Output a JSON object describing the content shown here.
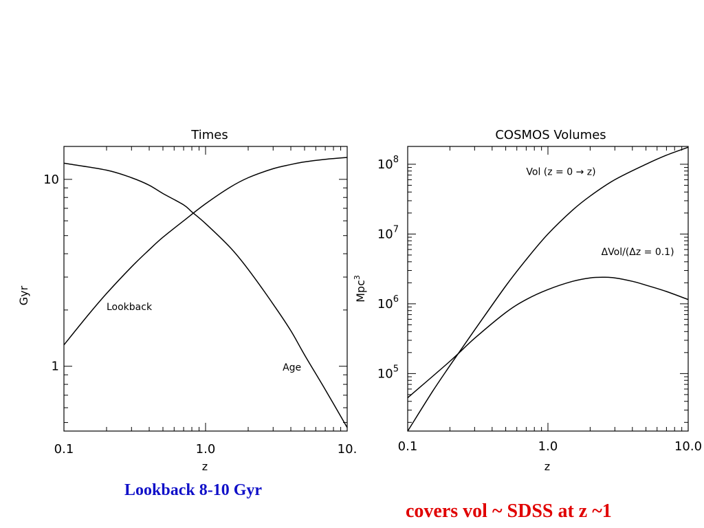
{
  "chart_data": [
    {
      "type": "line",
      "title": "Times",
      "xlabel": "z",
      "ylabel": "Gyr",
      "xscale": "log",
      "yscale": "log",
      "xlim": [
        0.1,
        10
      ],
      "ylim": [
        0.45,
        15
      ],
      "xticks": [
        0.1,
        1,
        10
      ],
      "xtick_labels": [
        "0.1",
        "1.0",
        "10."
      ],
      "yticks": [
        1,
        10
      ],
      "ytick_labels": [
        "1",
        "10"
      ],
      "grid": false,
      "series": [
        {
          "name": "Lookback",
          "x": [
            0.1,
            0.15,
            0.2,
            0.3,
            0.4,
            0.5,
            0.7,
            1.0,
            1.5,
            2.0,
            3.0,
            4.0,
            5.0,
            7.0,
            10.0
          ],
          "values": [
            1.3,
            1.9,
            2.45,
            3.4,
            4.2,
            4.9,
            6.0,
            7.4,
            9.1,
            10.2,
            11.4,
            12.0,
            12.4,
            12.8,
            13.1
          ]
        },
        {
          "name": "Age",
          "x": [
            0.1,
            0.2,
            0.3,
            0.4,
            0.5,
            0.7,
            0.8,
            1.0,
            1.5,
            2.0,
            3.0,
            4.0,
            5.0,
            7.0,
            10.0
          ],
          "values": [
            12.2,
            11.2,
            10.2,
            9.3,
            8.4,
            7.3,
            6.7,
            5.8,
            4.3,
            3.3,
            2.15,
            1.55,
            1.15,
            0.75,
            0.47
          ]
        }
      ],
      "annotations": [
        {
          "text": "Lookback",
          "x": 0.2,
          "y": 2.0
        },
        {
          "text": "Age",
          "x": 3.5,
          "y": 0.95
        }
      ]
    },
    {
      "type": "line",
      "title": "COSMOS Volumes",
      "xlabel": "z",
      "ylabel": "Mpc",
      "ylabel_superscript": "3",
      "xscale": "log",
      "yscale": "log",
      "xlim": [
        0.1,
        10
      ],
      "ylim": [
        15000,
        180000000
      ],
      "xticks": [
        0.1,
        1,
        10
      ],
      "xtick_labels": [
        "0.1",
        "1.0",
        "10.0"
      ],
      "yticks": [
        100000,
        1000000,
        10000000,
        100000000
      ],
      "ytick_labels": [
        {
          "base": "10",
          "exp": "5"
        },
        {
          "base": "10",
          "exp": "6"
        },
        {
          "base": "10",
          "exp": "7"
        },
        {
          "base": "10",
          "exp": "8"
        }
      ],
      "grid": false,
      "series": [
        {
          "name": "Vol (z = 0 → z)",
          "x": [
            0.1,
            0.15,
            0.2,
            0.3,
            0.5,
            0.7,
            1.0,
            1.5,
            2.0,
            3.0,
            5.0,
            7.0,
            10.0
          ],
          "values": [
            15000,
            55000,
            130000,
            420000,
            1800000,
            4300000,
            10000000,
            22000000,
            35000000,
            60000000,
            100000000,
            135000000,
            175000000
          ]
        },
        {
          "name": "ΔVol/(Δz = 0.1)",
          "x": [
            0.1,
            0.2,
            0.3,
            0.5,
            0.7,
            1.0,
            1.5,
            2.0,
            2.5,
            3.0,
            4.0,
            5.0,
            7.0,
            10.0
          ],
          "values": [
            45000,
            150000,
            320000,
            750000,
            1150000,
            1600000,
            2100000,
            2350000,
            2400000,
            2350000,
            2100000,
            1850000,
            1500000,
            1150000
          ]
        }
      ],
      "annotations": [
        {
          "text": "Vol (z = 0 → z)",
          "x": 0.7,
          "y": 70000000
        },
        {
          "text": "ΔVol/(Δz = 0.1)",
          "x": 2.4,
          "y": 5000000
        }
      ]
    }
  ],
  "captions": {
    "left": {
      "text": "Lookback 8-10 Gyr",
      "color": "#1010c8"
    },
    "right": {
      "text": "covers  vol ~ SDSS at z ~1",
      "color": "#e00000"
    }
  }
}
